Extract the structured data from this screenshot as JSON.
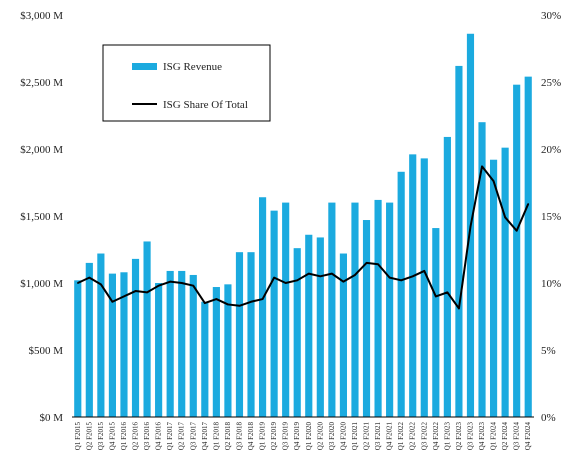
{
  "chart_data": {
    "type": "bar",
    "categories": [
      "Q1 F2015",
      "Q2 F2015",
      "Q3 F2015",
      "Q4 F2015",
      "Q1 F2016",
      "Q2 F2016",
      "Q3 F2016",
      "Q4 F2016",
      "Q1 F2017",
      "Q2 F2017",
      "Q3 F2017",
      "Q4 F2017",
      "Q1 F2018",
      "Q2 F2018",
      "Q3 F2018",
      "Q4 F2018",
      "Q1 F2019",
      "Q2 F2019",
      "Q3 F2019",
      "Q4 F2019",
      "Q1 F2020",
      "Q2 F2020",
      "Q3 F2020",
      "Q4 F2020",
      "Q1 F2021",
      "Q2 F2021",
      "Q3 F2021",
      "Q4 F2021",
      "Q1 F2022",
      "Q2 F2022",
      "Q3 F2022",
      "Q4 F2022",
      "Q1 F2023",
      "Q2 F2023",
      "Q3 F2023",
      "Q4 F2023",
      "Q1 F2024",
      "Q2 F2024",
      "Q3 F2024",
      "Q4 F2024"
    ],
    "series": [
      {
        "name": "ISG Revenue",
        "type": "bar",
        "axis": "left",
        "color": "#1BAADF",
        "values": [
          1020,
          1150,
          1220,
          1070,
          1080,
          1180,
          1310,
          1000,
          1090,
          1090,
          1060,
          860,
          970,
          990,
          1230,
          1230,
          1640,
          1540,
          1600,
          1260,
          1360,
          1340,
          1600,
          1220,
          1600,
          1470,
          1620,
          1600,
          1830,
          1960,
          1930,
          1410,
          2090,
          2620,
          2860,
          2200,
          1920,
          2010,
          2480,
          2540
        ]
      },
      {
        "name": "ISG Share Of Total",
        "type": "line",
        "axis": "right",
        "color": "#000000",
        "values": [
          10.0,
          10.4,
          9.9,
          8.6,
          9.0,
          9.4,
          9.3,
          9.8,
          10.1,
          10.0,
          9.8,
          8.5,
          8.8,
          8.4,
          8.3,
          8.6,
          8.8,
          10.4,
          10.0,
          10.2,
          10.7,
          10.5,
          10.7,
          10.1,
          10.6,
          11.5,
          11.4,
          10.4,
          10.2,
          10.5,
          10.9,
          9.0,
          9.3,
          8.1,
          14.2,
          18.7,
          17.6,
          14.9,
          13.9,
          15.9
        ]
      }
    ],
    "y_left": {
      "ylim": [
        0,
        3000
      ],
      "tick_values": [
        0,
        500,
        1000,
        1500,
        2000,
        2500,
        3000
      ],
      "tick_labels": [
        "$0 M",
        "$500 M",
        "$1,000 M",
        "$1,500 M",
        "$2,000 M",
        "$2,500 M",
        "$3,000 M"
      ]
    },
    "y_right": {
      "ylim": [
        0,
        30
      ],
      "tick_values": [
        0,
        5,
        10,
        15,
        20,
        25,
        30
      ],
      "tick_labels": [
        "0%",
        "5%",
        "10%",
        "15%",
        "20%",
        "25%",
        "30%"
      ]
    },
    "title": "",
    "xlabel": "",
    "ylabel": "",
    "legend": {
      "placement": "top-left",
      "entries": [
        "ISG Revenue",
        "ISG Share Of Total"
      ]
    },
    "grid": false
  }
}
